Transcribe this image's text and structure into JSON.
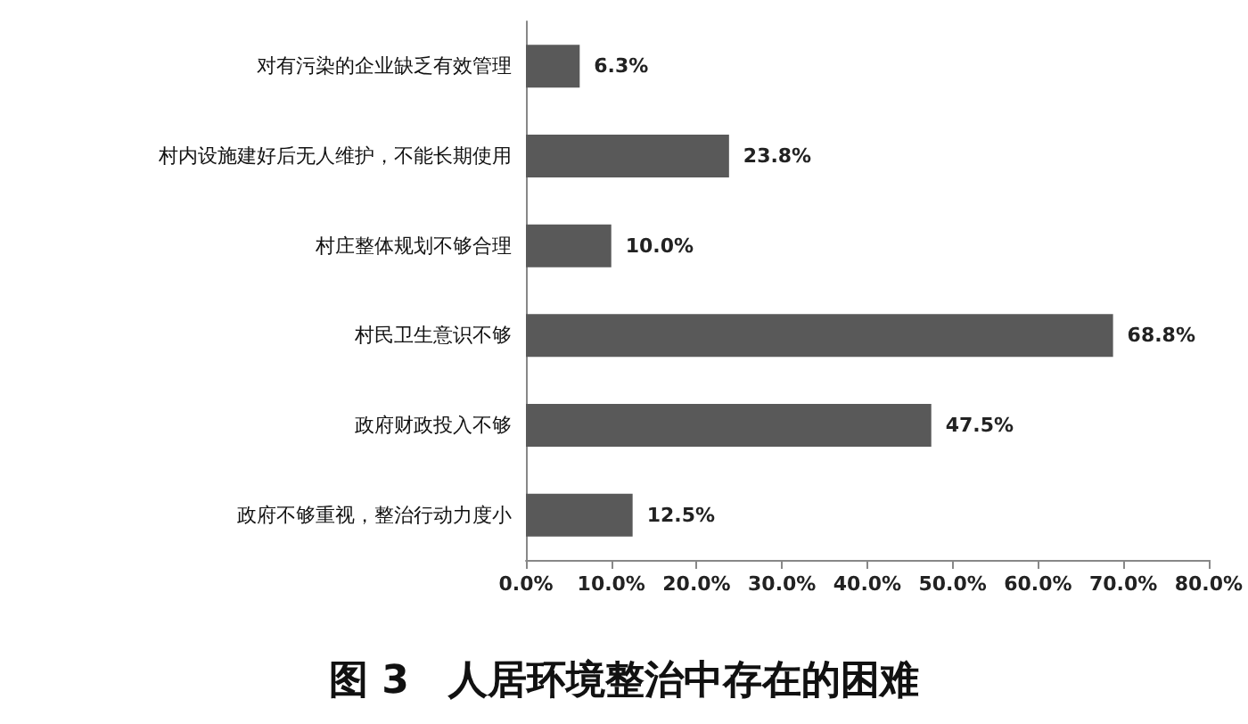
{
  "chart_data": {
    "type": "bar",
    "orientation": "horizontal",
    "title": "图 3　人居环境整治中存在的困难",
    "categories": [
      "对有污染的企业缺乏有效管理",
      "村内设施建好后无人维护，不能长期使用",
      "村庄整体规划不够合理",
      "村民卫生意识不够",
      "政府财政投入不够",
      "政府不够重视，整治行动力度小"
    ],
    "values": [
      6.3,
      23.8,
      10.0,
      68.8,
      47.5,
      12.5
    ],
    "value_labels": [
      "6.3%",
      "23.8%",
      "10.0%",
      "68.8%",
      "47.5%",
      "12.5%"
    ],
    "color": "#595959",
    "xlim": [
      0,
      80
    ],
    "xticks": [
      {
        "value": 0,
        "label": "0.0%"
      },
      {
        "value": 10,
        "label": "10.0%"
      },
      {
        "value": 20,
        "label": "20.0%"
      },
      {
        "value": 30,
        "label": "30.0%"
      },
      {
        "value": 40,
        "label": "40.0%"
      },
      {
        "value": 50,
        "label": "50.0%"
      },
      {
        "value": 60,
        "label": "60.0%"
      },
      {
        "value": 70,
        "label": "70.0%"
      },
      {
        "value": 80,
        "label": "80.0%"
      }
    ],
    "grid": false
  }
}
